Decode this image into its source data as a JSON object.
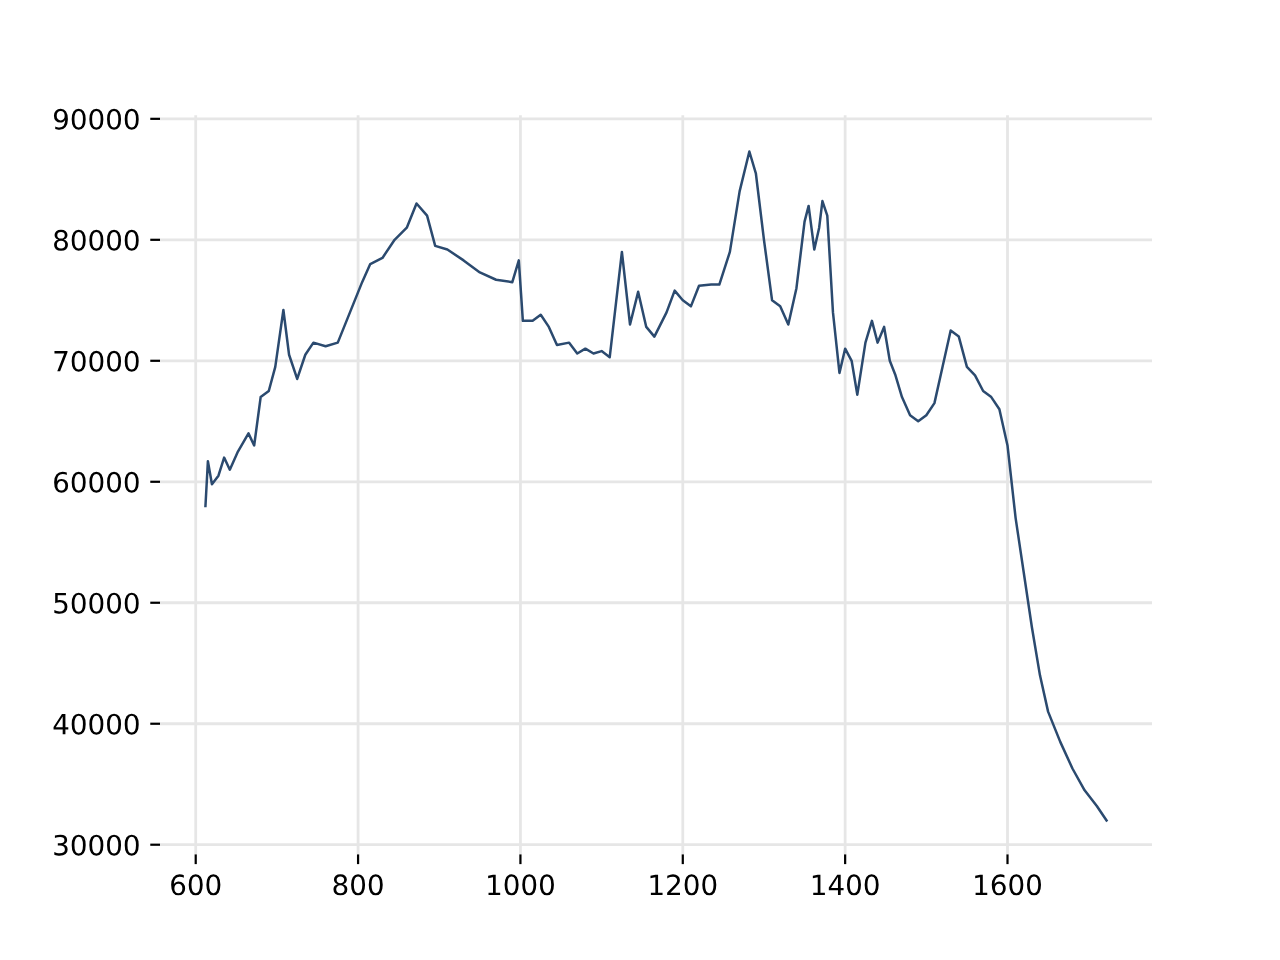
{
  "chart_data": {
    "type": "line",
    "x": [
      612,
      615,
      620,
      628,
      635,
      642,
      652,
      665,
      672,
      680,
      690,
      698,
      708,
      715,
      725,
      735,
      745,
      760,
      775,
      790,
      805,
      815,
      830,
      845,
      860,
      872,
      885,
      895,
      910,
      930,
      950,
      970,
      990,
      998,
      1003,
      1015,
      1025,
      1035,
      1045,
      1060,
      1070,
      1080,
      1090,
      1100,
      1110,
      1125,
      1135,
      1145,
      1155,
      1165,
      1180,
      1190,
      1200,
      1210,
      1220,
      1235,
      1245,
      1258,
      1270,
      1282,
      1290,
      1300,
      1310,
      1320,
      1330,
      1340,
      1350,
      1355,
      1362,
      1368,
      1372,
      1378,
      1385,
      1393,
      1400,
      1408,
      1415,
      1425,
      1433,
      1440,
      1448,
      1455,
      1462,
      1470,
      1480,
      1490,
      1500,
      1510,
      1520,
      1530,
      1540,
      1550,
      1560,
      1570,
      1580,
      1590,
      1600,
      1610,
      1620,
      1630,
      1640,
      1650,
      1665,
      1680,
      1695,
      1710,
      1722
    ],
    "series": [
      {
        "color": "#2b4a6f",
        "values": [
          58000,
          61700,
          59800,
          60500,
          62000,
          61000,
          62500,
          64000,
          63000,
          67000,
          67500,
          69500,
          74200,
          70500,
          68500,
          70500,
          71500,
          71200,
          71500,
          74000,
          76500,
          78000,
          78500,
          80000,
          81000,
          83000,
          82000,
          79500,
          79200,
          78300,
          77300,
          76700,
          76500,
          78300,
          73300,
          73300,
          73800,
          72800,
          71300,
          71500,
          70600,
          71000,
          70600,
          70800,
          70300,
          79000,
          73000,
          75700,
          72800,
          72000,
          74000,
          75800,
          75000,
          74500,
          76200,
          76300,
          76300,
          79000,
          84000,
          87300,
          85500,
          80000,
          75000,
          74500,
          73000,
          76000,
          81500,
          82800,
          79200,
          81000,
          83200,
          82000,
          74000,
          69000,
          71000,
          70000,
          67200,
          71500,
          73300,
          71500,
          72800,
          70000,
          68800,
          67000,
          65500,
          65000,
          65500,
          66500,
          69500,
          72500,
          72000,
          69500,
          68800,
          67500,
          67000,
          66000,
          63000,
          57000,
          52500,
          48000,
          44000,
          41000,
          38500,
          36300,
          34500,
          33200,
          32000
        ]
      }
    ],
    "xlim": [
      556,
      1778
    ],
    "ylim": [
      29200,
      90300
    ],
    "xticks": [
      600,
      800,
      1000,
      1200,
      1400,
      1600
    ],
    "yticks": [
      30000,
      40000,
      50000,
      60000,
      70000,
      80000,
      90000
    ],
    "grid": true,
    "marker": "none",
    "line_style": "solid"
  }
}
